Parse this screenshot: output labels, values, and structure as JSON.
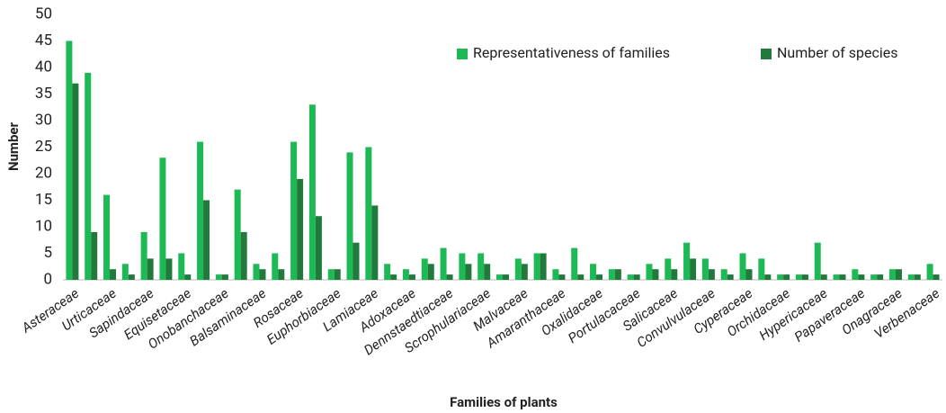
{
  "chart_data": {
    "type": "bar",
    "x_label": "Families of plants",
    "y_label": "Number",
    "categories": [
      "Asteraceae",
      null,
      "Urticaceae",
      null,
      "Sapindaceae",
      null,
      "Equisetaceae",
      null,
      "Onobanchaceae",
      null,
      "Balsaminaceae",
      null,
      "Rosaceae",
      null,
      "Euphorbiaceae",
      null,
      "Lamiaceae",
      null,
      "Adoxaceae",
      null,
      "Dennstaedtiaceae",
      null,
      "Scrophulariaceae",
      null,
      "Malvaceae",
      null,
      "Amaranthaceae",
      null,
      "Oxalidaceae",
      null,
      "Portulacaceae",
      null,
      "Salicaceae",
      null,
      "Convulvulaceae",
      null,
      "Cyperaceae",
      null,
      "Orchidaceae",
      null,
      "Hypericaceae",
      null,
      "Papaveraceae",
      null,
      "Onagraceae",
      null,
      "Verbenaceae"
    ],
    "series": [
      {
        "name": "Representativeness of families",
        "color": "#1db954",
        "values": [
          45,
          39,
          16,
          3,
          9,
          23,
          5,
          26,
          1,
          17,
          3,
          5,
          26,
          33,
          2,
          24,
          25,
          3,
          2,
          4,
          6,
          5,
          5,
          1,
          4,
          5,
          2,
          6,
          3,
          2,
          1,
          3,
          4,
          7,
          4,
          2,
          5,
          4,
          1,
          1,
          7,
          1,
          2,
          1,
          2,
          1,
          3
        ]
      },
      {
        "name": "Number of species",
        "color": "#217a3c",
        "values": [
          37,
          9,
          2,
          1,
          4,
          4,
          1,
          15,
          1,
          9,
          2,
          2,
          19,
          12,
          2,
          7,
          14,
          1,
          1,
          3,
          1,
          3,
          3,
          1,
          3,
          5,
          1,
          1,
          1,
          2,
          1,
          2,
          2,
          4,
          2,
          1,
          2,
          1,
          1,
          1,
          1,
          1,
          1,
          1,
          2,
          1,
          1
        ]
      }
    ],
    "ylim": [
      0,
      50
    ],
    "yticks": [
      0,
      5,
      10,
      15,
      20,
      25,
      30,
      35,
      40,
      45,
      50
    ],
    "legend": "top-right"
  }
}
